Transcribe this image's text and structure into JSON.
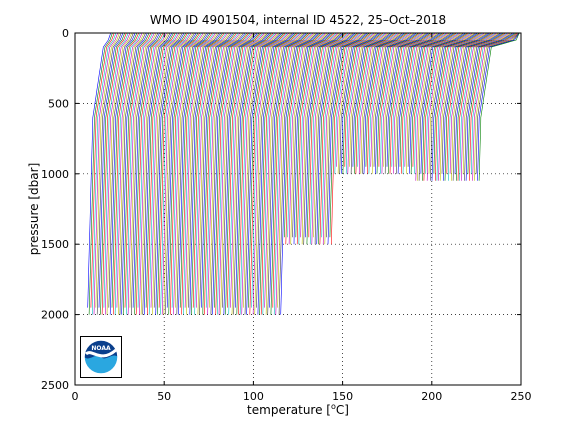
{
  "chart_data": {
    "type": "line",
    "title": "WMO ID 4901504, internal ID 4522, 25–Oct–2018",
    "xlabel_prefix": "temperature [",
    "xlabel_degree": "o",
    "xlabel_suffix": "C]",
    "ylabel": "pressure [dbar]",
    "xlim": [
      0,
      250
    ],
    "ylim": [
      0,
      2500
    ],
    "y_reversed": true,
    "xticks": [
      0,
      50,
      100,
      150,
      200,
      250
    ],
    "yticks": [
      0,
      500,
      1000,
      1500,
      2000,
      2500
    ],
    "grid": "dotted",
    "legend": "none",
    "description_of_series": "Waterfall of ~240 sequential temperature profiles, each offset horizontally; each profile has a warm surface layer, a thermocline near 50-150 dbar and a gradual cooling to ~2000 dbar.",
    "series": {
      "count": 240,
      "surface_offset_start": 12,
      "surface_offset_step": 0.98,
      "surface_extra_warm": 8,
      "deep_offset_start": 7,
      "deep_offset_step": 0.91,
      "thermocline_pressure": 90,
      "mid_pressure": 600,
      "typical_max_pressure": 2000,
      "truncated_groups": [
        {
          "from": 120,
          "to": 150,
          "max_pressure": 1500
        },
        {
          "from": 150,
          "to": 200,
          "max_pressure": 1000
        },
        {
          "from": 200,
          "to": 240,
          "max_pressure": 1050
        }
      ],
      "colors": [
        "#0000ff",
        "#008000",
        "#ff0000",
        "#00bfbf",
        "#bf00bf",
        "#bfbf00",
        "#404040"
      ]
    }
  },
  "logo": {
    "name": "noaa-logo",
    "text": "NOAA"
  }
}
